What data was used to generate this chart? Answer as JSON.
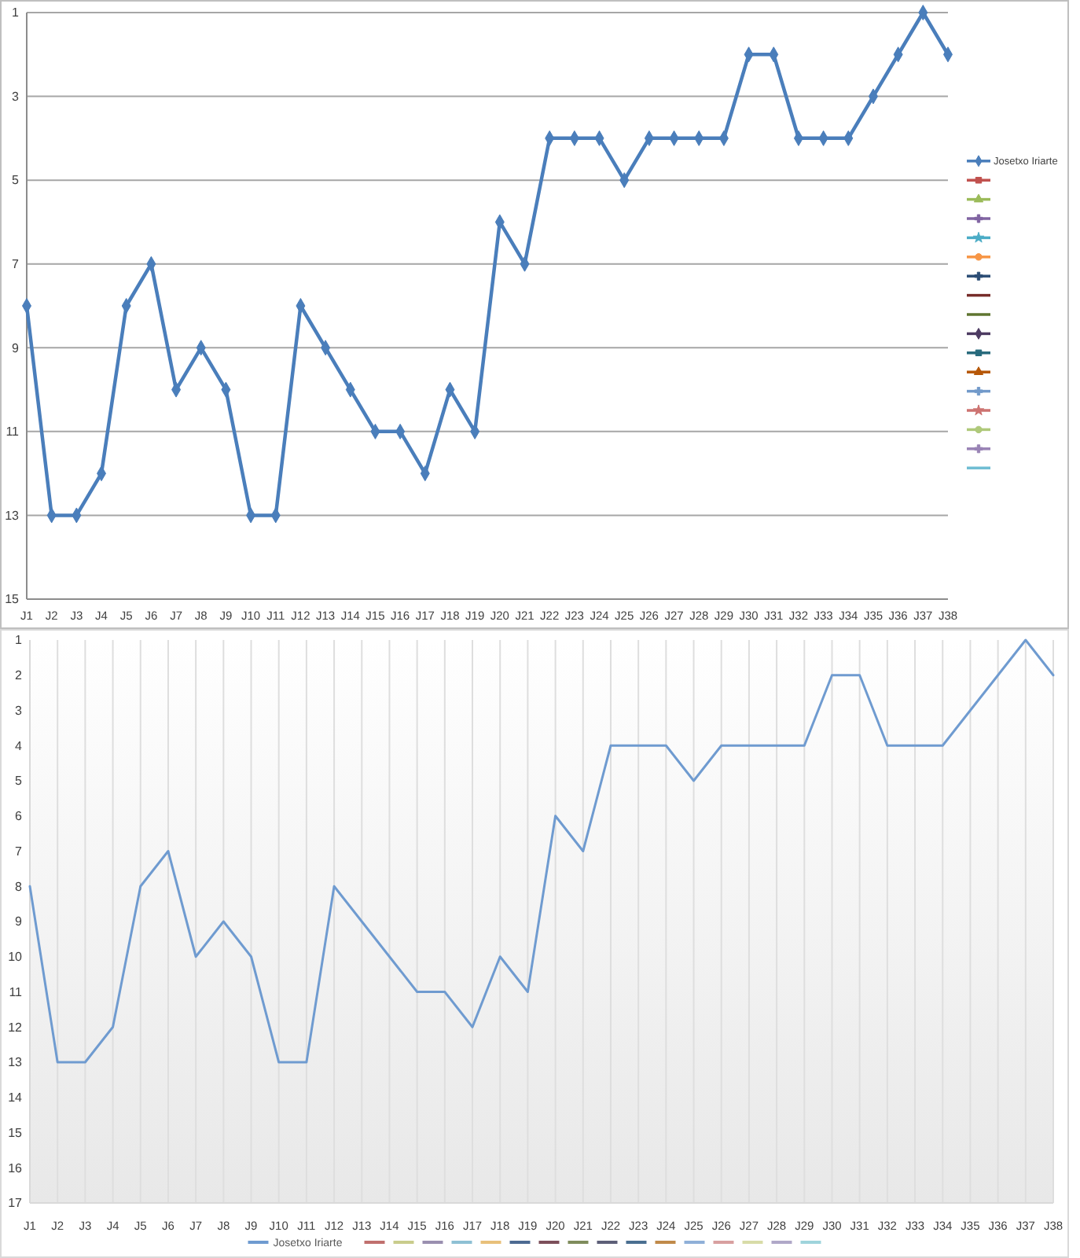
{
  "chart_data": [
    {
      "type": "line",
      "categories": [
        "J1",
        "J2",
        "J3",
        "J4",
        "J5",
        "J6",
        "J7",
        "J8",
        "J9",
        "J10",
        "J11",
        "J12",
        "J13",
        "J14",
        "J15",
        "J16",
        "J17",
        "J18",
        "J19",
        "J20",
        "J21",
        "J22",
        "J23",
        "J24",
        "J25",
        "J26",
        "J27",
        "J28",
        "J29",
        "J30",
        "J31",
        "J32",
        "J33",
        "J34",
        "J35",
        "J36",
        "J37",
        "J38"
      ],
      "ylim": [
        15,
        1
      ],
      "yticks": [
        1,
        3,
        5,
        7,
        9,
        11,
        13,
        15
      ],
      "grid": "y",
      "legend": "right",
      "marker": "diamond",
      "series": [
        {
          "name": "Josetxo Iriarte",
          "color": "#4a7ebb",
          "values": [
            8,
            13,
            13,
            12,
            8,
            7,
            10,
            9,
            10,
            13,
            13,
            8,
            9,
            10,
            11,
            11,
            12,
            10,
            11,
            6,
            7,
            4,
            4,
            4,
            5,
            4,
            4,
            4,
            4,
            2,
            2,
            4,
            4,
            4,
            3,
            2,
            1,
            2
          ]
        },
        {
          "color": "#c0504d",
          "marker": "square",
          "values": [
            null,
            null,
            null,
            null,
            null,
            null,
            null,
            null,
            null,
            null,
            null,
            null,
            null,
            null,
            null,
            null,
            null,
            null,
            null,
            null,
            null,
            null,
            null,
            null,
            null,
            null,
            null,
            null,
            null,
            null,
            null,
            null,
            null,
            null,
            null,
            null,
            null,
            null
          ]
        },
        {
          "color": "#9bbb59",
          "marker": "triangle",
          "values": [
            null,
            null,
            null,
            null,
            null,
            null,
            null,
            null,
            null,
            null,
            null,
            null,
            null,
            null,
            null,
            null,
            null,
            null,
            null,
            null,
            null,
            null,
            null,
            null,
            null,
            null,
            null,
            null,
            null,
            null,
            null,
            null,
            null,
            null,
            null,
            null,
            null,
            null
          ]
        },
        {
          "color": "#8064a2",
          "marker": "cross",
          "values": [
            null,
            null,
            null,
            null,
            null,
            null,
            null,
            null,
            null,
            null,
            null,
            null,
            null,
            null,
            null,
            null,
            null,
            null,
            null,
            null,
            null,
            null,
            null,
            null,
            null,
            null,
            null,
            null,
            null,
            null,
            null,
            null,
            null,
            null,
            null,
            null,
            null,
            null
          ]
        },
        {
          "color": "#4bacc6",
          "marker": "star",
          "values": [
            null,
            null,
            null,
            null,
            null,
            null,
            null,
            null,
            null,
            null,
            null,
            null,
            null,
            null,
            null,
            null,
            null,
            null,
            null,
            null,
            null,
            null,
            null,
            null,
            null,
            null,
            null,
            null,
            null,
            null,
            null,
            null,
            null,
            null,
            null,
            null,
            null,
            null
          ]
        },
        {
          "color": "#f79646",
          "marker": "circle",
          "values": [
            null,
            null,
            null,
            null,
            null,
            null,
            null,
            null,
            null,
            null,
            null,
            null,
            null,
            null,
            null,
            null,
            null,
            null,
            null,
            null,
            null,
            null,
            null,
            null,
            null,
            null,
            null,
            null,
            null,
            null,
            null,
            null,
            null,
            null,
            null,
            null,
            null,
            null
          ]
        },
        {
          "color": "#2c4d75",
          "marker": "cross",
          "values": [
            null,
            null,
            null,
            null,
            null,
            null,
            null,
            null,
            null,
            null,
            null,
            null,
            null,
            null,
            null,
            null,
            null,
            null,
            null,
            null,
            null,
            null,
            null,
            null,
            null,
            null,
            null,
            null,
            null,
            null,
            null,
            null,
            null,
            null,
            null,
            null,
            null,
            null
          ]
        },
        {
          "color": "#772c2a",
          "marker": "none",
          "values": [
            null,
            null,
            null,
            null,
            null,
            null,
            null,
            null,
            null,
            null,
            null,
            null,
            null,
            null,
            null,
            null,
            null,
            null,
            null,
            null,
            null,
            null,
            null,
            null,
            null,
            null,
            null,
            null,
            null,
            null,
            null,
            null,
            null,
            null,
            null,
            null,
            null,
            null
          ]
        },
        {
          "color": "#5f7530",
          "marker": "none",
          "values": [
            null,
            null,
            null,
            null,
            null,
            null,
            null,
            null,
            null,
            null,
            null,
            null,
            null,
            null,
            null,
            null,
            null,
            null,
            null,
            null,
            null,
            null,
            null,
            null,
            null,
            null,
            null,
            null,
            null,
            null,
            null,
            null,
            null,
            null,
            null,
            null,
            null,
            null
          ]
        },
        {
          "color": "#4d3b62",
          "marker": "diamond",
          "values": [
            null,
            null,
            null,
            null,
            null,
            null,
            null,
            null,
            null,
            null,
            null,
            null,
            null,
            null,
            null,
            null,
            null,
            null,
            null,
            null,
            null,
            null,
            null,
            null,
            null,
            null,
            null,
            null,
            null,
            null,
            null,
            null,
            null,
            null,
            null,
            null,
            null,
            null
          ]
        },
        {
          "color": "#276a7c",
          "marker": "square",
          "values": [
            null,
            null,
            null,
            null,
            null,
            null,
            null,
            null,
            null,
            null,
            null,
            null,
            null,
            null,
            null,
            null,
            null,
            null,
            null,
            null,
            null,
            null,
            null,
            null,
            null,
            null,
            null,
            null,
            null,
            null,
            null,
            null,
            null,
            null,
            null,
            null,
            null,
            null
          ]
        },
        {
          "color": "#b65708",
          "marker": "triangle",
          "values": [
            null,
            null,
            null,
            null,
            null,
            null,
            null,
            null,
            null,
            null,
            null,
            null,
            null,
            null,
            null,
            null,
            null,
            null,
            null,
            null,
            null,
            null,
            null,
            null,
            null,
            null,
            null,
            null,
            null,
            null,
            null,
            null,
            null,
            null,
            null,
            null,
            null,
            null
          ]
        },
        {
          "color": "#729aca",
          "marker": "cross",
          "values": [
            null,
            null,
            null,
            null,
            null,
            null,
            null,
            null,
            null,
            null,
            null,
            null,
            null,
            null,
            null,
            null,
            null,
            null,
            null,
            null,
            null,
            null,
            null,
            null,
            null,
            null,
            null,
            null,
            null,
            null,
            null,
            null,
            null,
            null,
            null,
            null,
            null,
            null
          ]
        },
        {
          "color": "#cd7371",
          "marker": "star",
          "values": [
            null,
            null,
            null,
            null,
            null,
            null,
            null,
            null,
            null,
            null,
            null,
            null,
            null,
            null,
            null,
            null,
            null,
            null,
            null,
            null,
            null,
            null,
            null,
            null,
            null,
            null,
            null,
            null,
            null,
            null,
            null,
            null,
            null,
            null,
            null,
            null,
            null,
            null
          ]
        },
        {
          "color": "#afc97a",
          "marker": "circle",
          "values": [
            null,
            null,
            null,
            null,
            null,
            null,
            null,
            null,
            null,
            null,
            null,
            null,
            null,
            null,
            null,
            null,
            null,
            null,
            null,
            null,
            null,
            null,
            null,
            null,
            null,
            null,
            null,
            null,
            null,
            null,
            null,
            null,
            null,
            null,
            null,
            null,
            null,
            null
          ]
        },
        {
          "color": "#9983b5",
          "marker": "cross",
          "values": [
            null,
            null,
            null,
            null,
            null,
            null,
            null,
            null,
            null,
            null,
            null,
            null,
            null,
            null,
            null,
            null,
            null,
            null,
            null,
            null,
            null,
            null,
            null,
            null,
            null,
            null,
            null,
            null,
            null,
            null,
            null,
            null,
            null,
            null,
            null,
            null,
            null,
            null
          ]
        },
        {
          "color": "#6fbdd3",
          "marker": "none",
          "values": [
            null,
            null,
            null,
            null,
            null,
            null,
            null,
            null,
            null,
            null,
            null,
            null,
            null,
            null,
            null,
            null,
            null,
            null,
            null,
            null,
            null,
            null,
            null,
            null,
            null,
            null,
            null,
            null,
            null,
            null,
            null,
            null,
            null,
            null,
            null,
            null,
            null,
            null
          ]
        }
      ]
    },
    {
      "type": "line",
      "categories": [
        "J1",
        "J2",
        "J3",
        "J4",
        "J5",
        "J6",
        "J7",
        "J8",
        "J9",
        "J10",
        "J11",
        "J12",
        "J13",
        "J14",
        "J15",
        "J16",
        "J17",
        "J18",
        "J19",
        "J20",
        "J21",
        "J22",
        "J23",
        "J24",
        "J25",
        "J26",
        "J27",
        "J28",
        "J29",
        "J30",
        "J31",
        "J32",
        "J33",
        "J34",
        "J35",
        "J36",
        "J37",
        "J38"
      ],
      "ylim": [
        17,
        1
      ],
      "yticks": [
        1,
        2,
        3,
        4,
        5,
        6,
        7,
        8,
        9,
        10,
        11,
        12,
        13,
        14,
        15,
        16,
        17
      ],
      "grid": "x",
      "legend": "bottom",
      "series": [
        {
          "name": "Josetxo Iriarte",
          "color": "#6f9bd0",
          "values": [
            8,
            13,
            13,
            12,
            8,
            7,
            10,
            9,
            10,
            13,
            13,
            8,
            9,
            10,
            11,
            11,
            12,
            10,
            11,
            6,
            7,
            4,
            4,
            4,
            5,
            4,
            4,
            4,
            4,
            2,
            2,
            4,
            4,
            4,
            3,
            2,
            1,
            2
          ]
        },
        {
          "color": "#c0706e",
          "values": [
            null,
            null,
            null,
            null,
            null,
            null,
            null,
            null,
            null,
            null,
            null,
            null,
            null,
            null,
            null,
            null,
            null,
            null,
            null,
            null,
            null,
            null,
            null,
            null,
            null,
            null,
            null,
            null,
            null,
            null,
            null,
            null,
            null,
            null,
            null,
            null,
            null,
            null
          ]
        },
        {
          "color": "#c9cc8c",
          "values": [
            null,
            null,
            null,
            null,
            null,
            null,
            null,
            null,
            null,
            null,
            null,
            null,
            null,
            null,
            null,
            null,
            null,
            null,
            null,
            null,
            null,
            null,
            null,
            null,
            null,
            null,
            null,
            null,
            null,
            null,
            null,
            null,
            null,
            null,
            null,
            null,
            null,
            null
          ]
        },
        {
          "color": "#9a8fb0",
          "values": [
            null,
            null,
            null,
            null,
            null,
            null,
            null,
            null,
            null,
            null,
            null,
            null,
            null,
            null,
            null,
            null,
            null,
            null,
            null,
            null,
            null,
            null,
            null,
            null,
            null,
            null,
            null,
            null,
            null,
            null,
            null,
            null,
            null,
            null,
            null,
            null,
            null,
            null
          ]
        },
        {
          "color": "#8ec0d4",
          "values": [
            null,
            null,
            null,
            null,
            null,
            null,
            null,
            null,
            null,
            null,
            null,
            null,
            null,
            null,
            null,
            null,
            null,
            null,
            null,
            null,
            null,
            null,
            null,
            null,
            null,
            null,
            null,
            null,
            null,
            null,
            null,
            null,
            null,
            null,
            null,
            null,
            null,
            null
          ]
        },
        {
          "color": "#e8c07a",
          "values": [
            null,
            null,
            null,
            null,
            null,
            null,
            null,
            null,
            null,
            null,
            null,
            null,
            null,
            null,
            null,
            null,
            null,
            null,
            null,
            null,
            null,
            null,
            null,
            null,
            null,
            null,
            null,
            null,
            null,
            null,
            null,
            null,
            null,
            null,
            null,
            null,
            null,
            null
          ]
        },
        {
          "color": "#4d6a92",
          "values": [
            null,
            null,
            null,
            null,
            null,
            null,
            null,
            null,
            null,
            null,
            null,
            null,
            null,
            null,
            null,
            null,
            null,
            null,
            null,
            null,
            null,
            null,
            null,
            null,
            null,
            null,
            null,
            null,
            null,
            null,
            null,
            null,
            null,
            null,
            null,
            null,
            null,
            null
          ]
        },
        {
          "color": "#7c4f5a",
          "values": [
            null,
            null,
            null,
            null,
            null,
            null,
            null,
            null,
            null,
            null,
            null,
            null,
            null,
            null,
            null,
            null,
            null,
            null,
            null,
            null,
            null,
            null,
            null,
            null,
            null,
            null,
            null,
            null,
            null,
            null,
            null,
            null,
            null,
            null,
            null,
            null,
            null,
            null
          ]
        },
        {
          "color": "#7f8c5c",
          "values": [
            null,
            null,
            null,
            null,
            null,
            null,
            null,
            null,
            null,
            null,
            null,
            null,
            null,
            null,
            null,
            null,
            null,
            null,
            null,
            null,
            null,
            null,
            null,
            null,
            null,
            null,
            null,
            null,
            null,
            null,
            null,
            null,
            null,
            null,
            null,
            null,
            null,
            null
          ]
        },
        {
          "color": "#5d5f78",
          "values": [
            null,
            null,
            null,
            null,
            null,
            null,
            null,
            null,
            null,
            null,
            null,
            null,
            null,
            null,
            null,
            null,
            null,
            null,
            null,
            null,
            null,
            null,
            null,
            null,
            null,
            null,
            null,
            null,
            null,
            null,
            null,
            null,
            null,
            null,
            null,
            null,
            null,
            null
          ]
        },
        {
          "color": "#4a6f90",
          "values": [
            null,
            null,
            null,
            null,
            null,
            null,
            null,
            null,
            null,
            null,
            null,
            null,
            null,
            null,
            null,
            null,
            null,
            null,
            null,
            null,
            null,
            null,
            null,
            null,
            null,
            null,
            null,
            null,
            null,
            null,
            null,
            null,
            null,
            null,
            null,
            null,
            null,
            null
          ]
        },
        {
          "color": "#c08a4a",
          "values": [
            null,
            null,
            null,
            null,
            null,
            null,
            null,
            null,
            null,
            null,
            null,
            null,
            null,
            null,
            null,
            null,
            null,
            null,
            null,
            null,
            null,
            null,
            null,
            null,
            null,
            null,
            null,
            null,
            null,
            null,
            null,
            null,
            null,
            null,
            null,
            null,
            null,
            null
          ]
        },
        {
          "color": "#8fb0d8",
          "values": [
            null,
            null,
            null,
            null,
            null,
            null,
            null,
            null,
            null,
            null,
            null,
            null,
            null,
            null,
            null,
            null,
            null,
            null,
            null,
            null,
            null,
            null,
            null,
            null,
            null,
            null,
            null,
            null,
            null,
            null,
            null,
            null,
            null,
            null,
            null,
            null,
            null,
            null
          ]
        },
        {
          "color": "#d8a0a0",
          "values": [
            null,
            null,
            null,
            null,
            null,
            null,
            null,
            null,
            null,
            null,
            null,
            null,
            null,
            null,
            null,
            null,
            null,
            null,
            null,
            null,
            null,
            null,
            null,
            null,
            null,
            null,
            null,
            null,
            null,
            null,
            null,
            null,
            null,
            null,
            null,
            null,
            null,
            null
          ]
        },
        {
          "color": "#d8dca8",
          "values": [
            null,
            null,
            null,
            null,
            null,
            null,
            null,
            null,
            null,
            null,
            null,
            null,
            null,
            null,
            null,
            null,
            null,
            null,
            null,
            null,
            null,
            null,
            null,
            null,
            null,
            null,
            null,
            null,
            null,
            null,
            null,
            null,
            null,
            null,
            null,
            null,
            null,
            null
          ]
        },
        {
          "color": "#b0a8c8",
          "values": [
            null,
            null,
            null,
            null,
            null,
            null,
            null,
            null,
            null,
            null,
            null,
            null,
            null,
            null,
            null,
            null,
            null,
            null,
            null,
            null,
            null,
            null,
            null,
            null,
            null,
            null,
            null,
            null,
            null,
            null,
            null,
            null,
            null,
            null,
            null,
            null,
            null,
            null
          ]
        },
        {
          "color": "#9fd4dc",
          "values": [
            null,
            null,
            null,
            null,
            null,
            null,
            null,
            null,
            null,
            null,
            null,
            null,
            null,
            null,
            null,
            null,
            null,
            null,
            null,
            null,
            null,
            null,
            null,
            null,
            null,
            null,
            null,
            null,
            null,
            null,
            null,
            null,
            null,
            null,
            null,
            null,
            null,
            null
          ]
        }
      ]
    }
  ]
}
